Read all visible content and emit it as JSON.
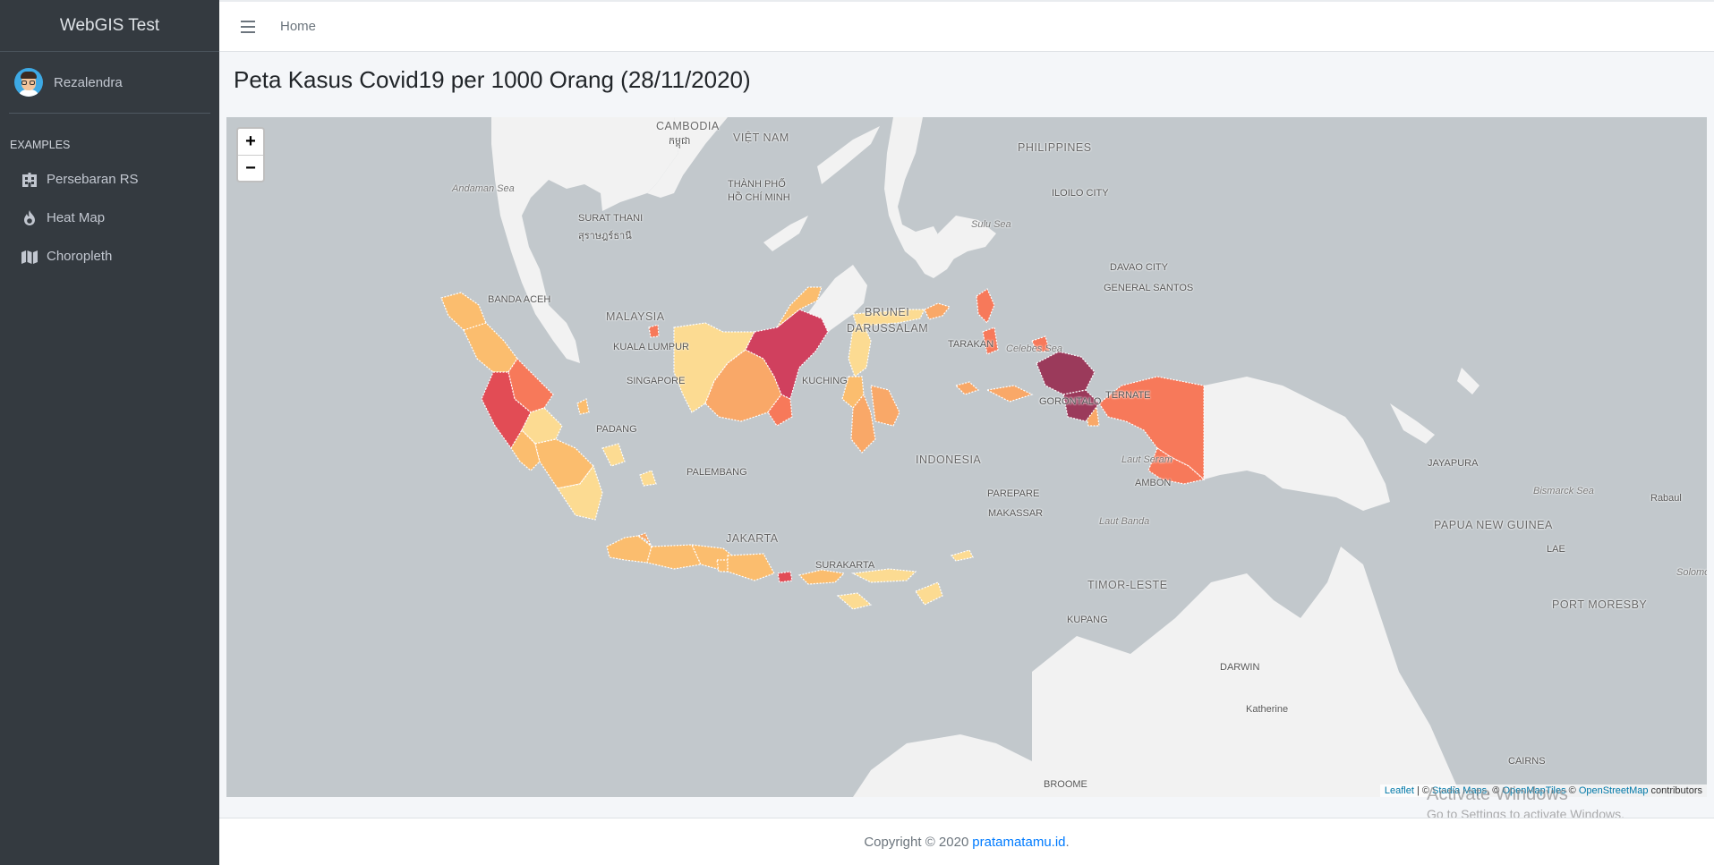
{
  "app": {
    "brand": "WebGIS Test"
  },
  "user": {
    "name": "Rezalendra"
  },
  "sidebar": {
    "section_header": "Examples",
    "items": [
      {
        "label": "Persebaran RS",
        "icon": "hospital-icon"
      },
      {
        "label": "Heat Map",
        "icon": "fire-icon"
      },
      {
        "label": "Choropleth",
        "icon": "map-icon"
      }
    ]
  },
  "header": {
    "home_label": "Home"
  },
  "page": {
    "title": "Peta Kasus Covid19 per 1000 Orang (28/11/2020)"
  },
  "map": {
    "zoom_in": "+",
    "zoom_out": "−",
    "attribution": {
      "leaflet": "Leaflet",
      "sep1": " | © ",
      "stadia": "Stadia Maps",
      "sep2": ", © ",
      "omt": "OpenMapTiles",
      "sep3": " © ",
      "osm": "OpenStreetMap",
      "tail": " contributors"
    },
    "labels": {
      "cambodia": "CAMBODIA",
      "cambodia_native": "កម្ពុជា",
      "vietnam": "VIỆT NAM",
      "philippines": "PHILIPPINES",
      "andaman": "Andaman Sea",
      "surat": "SURAT THANI",
      "surat_native": "สุราษฎร์ธานี",
      "hcm1": "THÀNH PHỐ",
      "hcm2": "HỒ CHÍ MINH",
      "iloilo": "ILOILO CITY",
      "sulu": "Sulu Sea",
      "davao": "DAVAO CITY",
      "gensan": "GENERAL SANTOS",
      "banda_aceh": "BANDA ACEH",
      "malaysia": "MALAYSIA",
      "brunei1": "BRUNEI",
      "brunei2": "DARUSSALAM",
      "kl": "KUALA LUMPUR",
      "tarakan": "TARAKAN",
      "celebes": "Celebes Sea",
      "singapore": "SINGAPORE",
      "kuching": "KUCHING",
      "gorontalo": "GORONTALO",
      "ternate": "TERNATE",
      "padang": "PADANG",
      "palembang": "PALEMBANG",
      "indonesia": "INDONESIA",
      "laut_seram": "Laut Seram",
      "ambon": "AMBON",
      "jayapura": "JAYAPURA",
      "bismarck": "Bismarck Sea",
      "rabaul": "Rabaul",
      "pare": "PAREPARE",
      "makassar": "MAKASSAR",
      "laut_banda": "Laut Banda",
      "png": "PAPUA NEW GUINEA",
      "lae": "LAE",
      "solomon": "Solomon",
      "jakarta": "JAKARTA",
      "surakarta": "SURAKARTA",
      "timor": "TIMOR-LESTE",
      "kupang": "KUPANG",
      "port_moresby": "PORT MORESBY",
      "darwin": "DARWIN",
      "katherine": "Katherine",
      "cairns": "CAIRNS",
      "broome": "BROOME"
    },
    "colors": {
      "water": "#c2c8cc",
      "land": "#f2f2f2",
      "lightest": "#fcdb92",
      "light": "#fbbd6e",
      "mid": "#f9a868",
      "orange_red": "#f7795a",
      "red": "#e24c55",
      "crimson": "#d0405e",
      "dark": "#9b3a5b"
    }
  },
  "watermark": {
    "line1": "Activate Windows",
    "line2": "Go to Settings to activate Windows."
  },
  "footer": {
    "text": "Copyright © 2020",
    "link": "pratamatamu.id",
    "suffix": "."
  }
}
